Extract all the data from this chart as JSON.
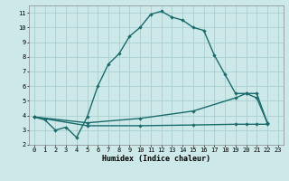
{
  "xlabel": "Humidex (Indice chaleur)",
  "background_color": "#cce8e8",
  "grid_color": "#aacfcf",
  "line_color": "#1a6b6b",
  "line1_x": [
    0,
    1,
    2,
    3,
    4,
    5,
    6,
    7,
    8,
    9,
    10,
    11,
    12,
    13,
    14,
    15,
    16,
    17,
    18,
    19,
    20,
    21,
    22
  ],
  "line1_y": [
    3.9,
    3.7,
    3.0,
    3.2,
    2.5,
    3.9,
    6.0,
    7.5,
    8.2,
    9.4,
    10.0,
    10.9,
    11.1,
    10.7,
    10.5,
    10.0,
    9.8,
    8.1,
    6.8,
    5.5,
    5.5,
    5.2,
    3.5
  ],
  "line2_x": [
    0,
    22
  ],
  "line2_y": [
    3.9,
    3.5
  ],
  "line3_x": [
    0,
    5,
    10,
    15,
    19,
    20,
    21,
    22
  ],
  "line3_y": [
    3.9,
    3.5,
    3.8,
    4.3,
    5.2,
    5.5,
    5.5,
    3.5
  ],
  "line4_x": [
    0,
    5,
    10,
    15,
    19,
    20,
    21,
    22
  ],
  "line4_y": [
    3.9,
    3.3,
    3.3,
    3.35,
    3.4,
    3.4,
    3.4,
    3.4
  ],
  "xlim": [
    -0.5,
    23.5
  ],
  "ylim": [
    2,
    11.5
  ],
  "yticks": [
    2,
    3,
    4,
    5,
    6,
    7,
    8,
    9,
    10,
    11
  ],
  "xticks": [
    0,
    1,
    2,
    3,
    4,
    5,
    6,
    7,
    8,
    9,
    10,
    11,
    12,
    13,
    14,
    15,
    16,
    17,
    18,
    19,
    20,
    21,
    22,
    23
  ]
}
